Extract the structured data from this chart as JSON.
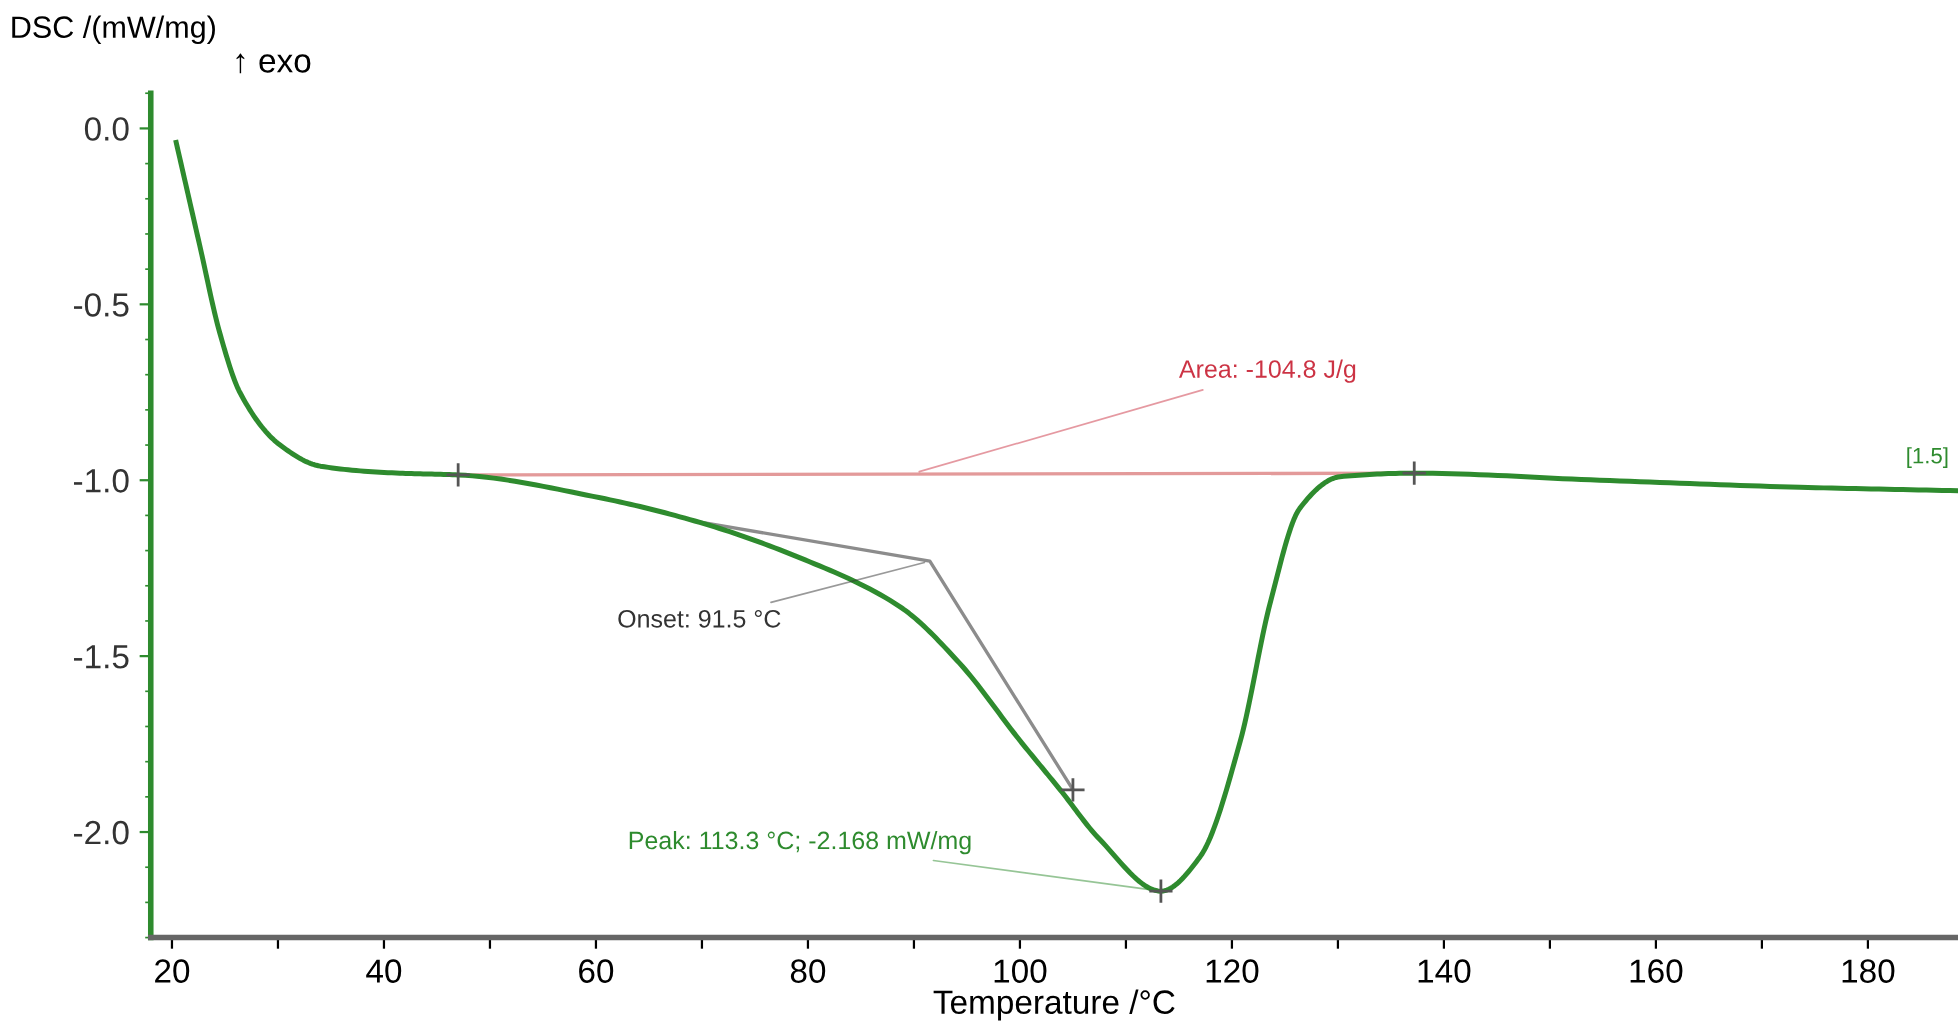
{
  "chart_data": {
    "type": "line",
    "xlabel": "Temperature /°C",
    "ylabel": "DSC /(mW/mg)",
    "xlim": [
      18,
      188.5
    ],
    "ylim": [
      -2.3,
      0.1
    ],
    "xticks": [
      20,
      {
        "value": 30,
        "label": null
      },
      40,
      {
        "value": 50,
        "label": null
      },
      60,
      {
        "value": 70,
        "label": null
      },
      80,
      {
        "value": 90,
        "label": null
      },
      100,
      {
        "value": 110,
        "label": null
      },
      120,
      {
        "value": 130,
        "label": null
      },
      140,
      {
        "value": 150,
        "label": null
      },
      160,
      {
        "value": 170,
        "label": null
      },
      180
    ],
    "yticks": [
      {
        "value": 0,
        "label": "0.0"
      },
      {
        "value": -0.5,
        "label": "-0.5"
      },
      {
        "value": -1,
        "label": "-1.0"
      },
      {
        "value": -1.5,
        "label": "-1.5"
      },
      {
        "value": -2,
        "label": "-2.0"
      }
    ],
    "grid": false,
    "legend": false,
    "series": [
      {
        "color": "#2e8b2e",
        "x": [
          20.4,
          22.6,
          24.5,
          26.4,
          30.2,
          34,
          41.5,
          47,
          60.4,
          69.8,
          79.2,
          88.7,
          94.3,
          100,
          103.8,
          107.5,
          113.3,
          117,
          120.8,
          123.6,
          126.4,
          130.2,
          137.2,
          154.7,
          173.6,
          188.5
        ],
        "values": [
          -0.04,
          -0.33,
          -0.58,
          -0.75,
          -0.9,
          -0.96,
          -0.98,
          -0.985,
          -1.05,
          -1.12,
          -1.22,
          -1.36,
          -1.52,
          -1.74,
          -1.88,
          -2.02,
          -2.168,
          -2.07,
          -1.74,
          -1.35,
          -1.08,
          -0.99,
          -0.98,
          -1.0,
          -1.02,
          -1.03
        ]
      },
      {
        "type": "line",
        "color": "#e39a9a",
        "x": [
          47,
          137.2
        ],
        "values": [
          -0.985,
          -0.98
        ]
      },
      {
        "type": "line",
        "color": "#8c8c8c",
        "x": [
          70,
          91.5,
          105
        ],
        "values": [
          -1.12,
          -1.23,
          -1.88
        ]
      },
      {
        "type": "scatter",
        "color": "#555555",
        "marker": "cross",
        "x": [
          47,
          137.2,
          105,
          113.3
        ],
        "values": [
          -0.985,
          -0.98,
          -1.88,
          -2.168
        ]
      }
    ],
    "annotations": [
      "↑ exo",
      {
        "text": "Area: -104.8 J/g",
        "x": 90,
        "y": -0.98
      },
      {
        "text": "Onset: 91.5 °C",
        "x": 91.5,
        "y": -1.23
      },
      {
        "text": "Peak: 113.3 °C; -2.168 mW/mg",
        "x": 113.3,
        "y": -2.168
      },
      "[1.5]"
    ]
  }
}
